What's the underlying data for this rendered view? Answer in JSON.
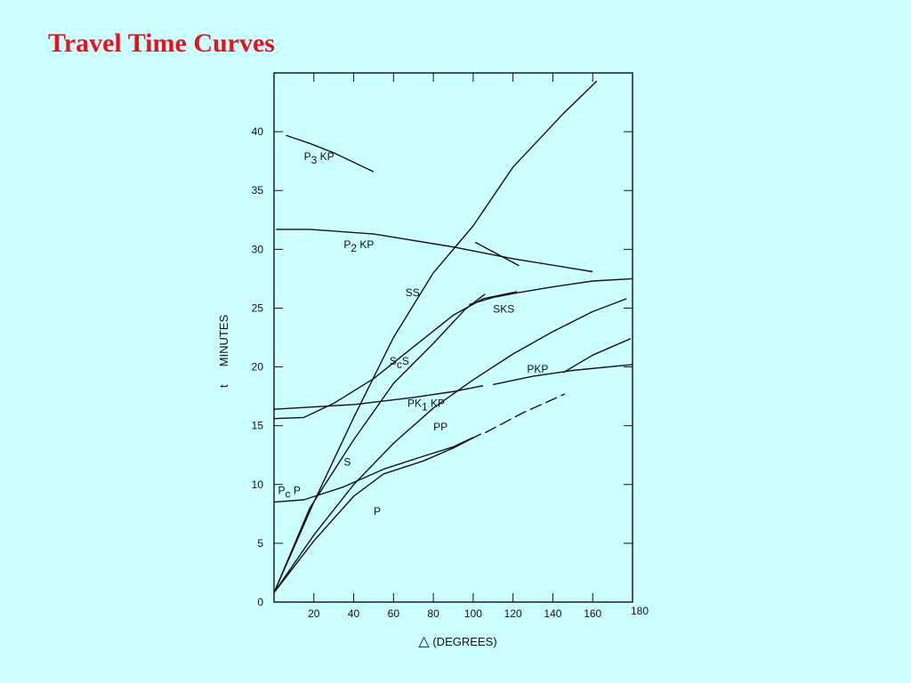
{
  "slide": {
    "title": "Travel Time Curves"
  },
  "chart_data": {
    "type": "line",
    "xlabel": "(DEGREES)",
    "xlabel_symbol": "△",
    "ylabel_t": "t",
    "ylabel_text": "MINUTES",
    "xlim": [
      0,
      180
    ],
    "ylim": [
      0,
      45
    ],
    "x_ticks": [
      20,
      40,
      60,
      80,
      100,
      120,
      140,
      160,
      180
    ],
    "y_ticks": [
      0,
      5,
      10,
      15,
      20,
      25,
      30,
      35,
      40
    ],
    "grid": false,
    "series": [
      {
        "name": "P3KP",
        "label_main": "P",
        "label_sub": "3",
        "label_tail": " KP",
        "points": [
          [
            6,
            39.7
          ],
          [
            18,
            39.0
          ],
          [
            30,
            38.2
          ],
          [
            50,
            36.6
          ]
        ]
      },
      {
        "name": "P2KP",
        "label_main": "P",
        "label_sub": "2",
        "label_tail": " KP",
        "points": [
          [
            1,
            31.7
          ],
          [
            18,
            31.7
          ],
          [
            50,
            31.3
          ],
          [
            90,
            30.2
          ],
          [
            120,
            29.2
          ],
          [
            160,
            28.1
          ]
        ]
      },
      {
        "name": "P2KP-branch",
        "points": [
          [
            101,
            30.6
          ],
          [
            123,
            28.6
          ]
        ]
      },
      {
        "name": "SS",
        "label_main": "SS",
        "points": [
          [
            0,
            0.8
          ],
          [
            20,
            8.5
          ],
          [
            40,
            15.7
          ],
          [
            60,
            22.5
          ],
          [
            80,
            28.0
          ],
          [
            100,
            32.0
          ],
          [
            120,
            37.0
          ],
          [
            145,
            41.5
          ],
          [
            162,
            44.3
          ]
        ]
      },
      {
        "name": "S",
        "label_main": "S",
        "points": [
          [
            0,
            0.8
          ],
          [
            18,
            8.0
          ],
          [
            40,
            13.8
          ],
          [
            60,
            18.6
          ],
          [
            80,
            22.0
          ],
          [
            96,
            24.9
          ],
          [
            106,
            26.2
          ]
        ]
      },
      {
        "name": "ScS",
        "label_main": "S",
        "label_sub": "c",
        "label_tail": "S",
        "points": [
          [
            0,
            15.6
          ],
          [
            15,
            15.7
          ],
          [
            30,
            16.9
          ],
          [
            50,
            19.0
          ],
          [
            70,
            21.7
          ],
          [
            90,
            24.4
          ],
          [
            105,
            25.8
          ],
          [
            122,
            26.4
          ]
        ]
      },
      {
        "name": "SKS",
        "label_main": "SKS",
        "points": [
          [
            98,
            25.3
          ],
          [
            110,
            25.9
          ],
          [
            122,
            26.3
          ],
          [
            140,
            26.8
          ],
          [
            160,
            27.3
          ],
          [
            180,
            27.5
          ]
        ]
      },
      {
        "name": "PKP",
        "label_main": "PKP",
        "points": [
          [
            110,
            18.5
          ],
          [
            130,
            19.2
          ],
          [
            150,
            19.7
          ],
          [
            180,
            20.2
          ]
        ]
      },
      {
        "name": "PK1KP",
        "label_main": "PK",
        "label_sub": "1",
        "label_tail": " KP",
        "points": [
          [
            0,
            16.4
          ],
          [
            40,
            16.8
          ],
          [
            70,
            17.4
          ],
          [
            90,
            17.9
          ],
          [
            105,
            18.4
          ]
        ]
      },
      {
        "name": "PP",
        "label_main": "PP",
        "points": [
          [
            0,
            0.8
          ],
          [
            20,
            5.7
          ],
          [
            40,
            10.0
          ],
          [
            60,
            13.5
          ],
          [
            80,
            16.5
          ],
          [
            100,
            18.9
          ],
          [
            120,
            21.1
          ],
          [
            140,
            23.0
          ],
          [
            160,
            24.7
          ],
          [
            177,
            25.8
          ]
        ]
      },
      {
        "name": "PP-branch",
        "points": [
          [
            145,
            19.5
          ],
          [
            160,
            21.0
          ],
          [
            179,
            22.4
          ]
        ]
      },
      {
        "name": "PcP",
        "label_main": "P",
        "label_sub": "c",
        "label_tail": " P",
        "points": [
          [
            0,
            8.5
          ],
          [
            15,
            8.7
          ],
          [
            35,
            9.8
          ],
          [
            55,
            11.3
          ],
          [
            75,
            12.4
          ],
          [
            90,
            13.2
          ],
          [
            100,
            14.0
          ]
        ]
      },
      {
        "name": "P",
        "label_main": "P",
        "points": [
          [
            0,
            0.8
          ],
          [
            20,
            5.2
          ],
          [
            40,
            9.0
          ],
          [
            55,
            10.9
          ],
          [
            75,
            12.0
          ],
          [
            90,
            13.1
          ],
          [
            104,
            14.3
          ]
        ]
      },
      {
        "name": "P-diffracted",
        "dashed": true,
        "points": [
          [
            106,
            14.4
          ],
          [
            125,
            16.1
          ],
          [
            146,
            17.7
          ]
        ]
      }
    ],
    "curve_labels": [
      {
        "series": "P3KP",
        "x": 15,
        "y": 37.6
      },
      {
        "series": "P2KP",
        "x": 35,
        "y": 30.1
      },
      {
        "series": "SS",
        "x": 66,
        "y": 26.0
      },
      {
        "series": "ScS",
        "x": 58,
        "y": 20.2
      },
      {
        "series": "SKS",
        "x": 110,
        "y": 24.6
      },
      {
        "series": "PKP",
        "x": 127,
        "y": 19.5
      },
      {
        "series": "PK1KP",
        "x": 67,
        "y": 16.6
      },
      {
        "series": "PP",
        "x": 80,
        "y": 14.6
      },
      {
        "series": "S",
        "x": 35,
        "y": 11.6
      },
      {
        "series": "PcP",
        "x": 2,
        "y": 9.2
      },
      {
        "series": "P",
        "x": 50,
        "y": 7.4
      }
    ]
  }
}
